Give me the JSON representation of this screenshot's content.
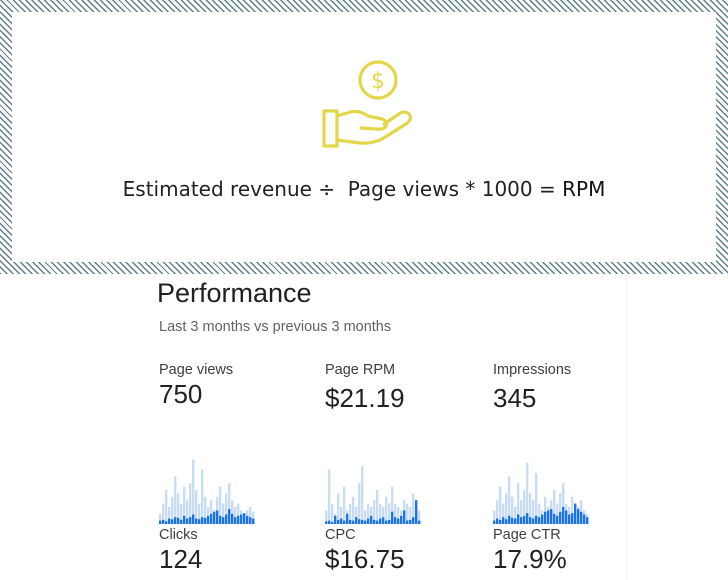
{
  "formula": {
    "part1": "Estimated revenue",
    "op1": "÷",
    "part2": "Page views",
    "op2": "*",
    "factor": "1000",
    "op3": "=",
    "result": "RPM"
  },
  "colors": {
    "icon_yellow": "#e3d749",
    "bar_light": "#c9dcf5",
    "bar_dark": "#1a73e8"
  },
  "performance": {
    "title": "Performance",
    "subtitle": "Last 3 months vs previous 3 months",
    "metrics": [
      {
        "label": "Page views",
        "value": "750"
      },
      {
        "label": "Page RPM",
        "value": "$21.19"
      },
      {
        "label": "Impressions",
        "value": "345"
      },
      {
        "label": "Clicks",
        "value": "124"
      },
      {
        "label": "CPC",
        "value": "$16.75"
      },
      {
        "label": "Page CTR",
        "value": "17.9%"
      }
    ]
  },
  "sparklines": [
    {
      "light": [
        0.15,
        0.3,
        0.5,
        0.25,
        0.4,
        0.7,
        0.45,
        0.3,
        0.55,
        0.35,
        0.6,
        0.95,
        0.5,
        0.3,
        0.8,
        0.4,
        0.25,
        0.35,
        0.2,
        0.4,
        0.55,
        0.3,
        0.45,
        0.6,
        0.35,
        0.25,
        0.3,
        0.2,
        0.15,
        0.2,
        0.25,
        0.18
      ],
      "dark": [
        0.05,
        0.06,
        0.04,
        0.08,
        0.07,
        0.1,
        0.09,
        0.06,
        0.12,
        0.08,
        0.1,
        0.14,
        0.08,
        0.07,
        0.1,
        0.09,
        0.12,
        0.15,
        0.18,
        0.2,
        0.12,
        0.1,
        0.14,
        0.22,
        0.15,
        0.1,
        0.12,
        0.14,
        0.16,
        0.12,
        0.1,
        0.08
      ]
    },
    {
      "light": [
        0.2,
        0.8,
        0.3,
        0.15,
        0.45,
        0.25,
        0.55,
        0.2,
        0.3,
        0.4,
        0.25,
        0.6,
        0.85,
        0.2,
        0.3,
        0.25,
        0.35,
        0.5,
        0.3,
        0.25,
        0.4,
        0.3,
        0.55,
        0.3,
        0.25,
        0.2,
        0.35,
        0.3,
        0.25,
        0.45,
        0.3,
        0.2
      ],
      "dark": [
        0.04,
        0.05,
        0.03,
        0.12,
        0.06,
        0.08,
        0.05,
        0.15,
        0.06,
        0.05,
        0.1,
        0.07,
        0.06,
        0.05,
        0.08,
        0.12,
        0.06,
        0.05,
        0.08,
        0.1,
        0.05,
        0.06,
        0.18,
        0.1,
        0.08,
        0.12,
        0.2,
        0.05,
        0.06,
        0.1,
        0.35,
        0.05
      ]
    },
    {
      "light": [
        0.2,
        0.35,
        0.55,
        0.3,
        0.45,
        0.7,
        0.4,
        0.25,
        0.6,
        0.35,
        0.5,
        0.9,
        0.45,
        0.35,
        0.75,
        0.3,
        0.2,
        0.4,
        0.25,
        0.35,
        0.5,
        0.3,
        0.45,
        0.6,
        0.3,
        0.25,
        0.4,
        0.3,
        0.25,
        0.35,
        0.2,
        0.15
      ],
      "dark": [
        0.05,
        0.08,
        0.06,
        0.1,
        0.07,
        0.12,
        0.09,
        0.08,
        0.14,
        0.1,
        0.12,
        0.16,
        0.1,
        0.08,
        0.12,
        0.1,
        0.14,
        0.18,
        0.2,
        0.22,
        0.15,
        0.12,
        0.18,
        0.25,
        0.2,
        0.14,
        0.16,
        0.3,
        0.22,
        0.18,
        0.14,
        0.1
      ]
    }
  ]
}
